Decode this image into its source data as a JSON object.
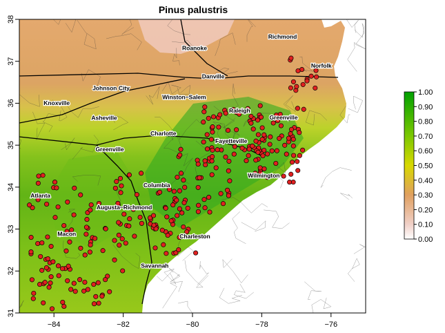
{
  "title": "Pinus palustris",
  "map": {
    "lon_range": [
      -85,
      -75
    ],
    "lat_range": [
      31,
      38
    ],
    "x_ticks": [
      {
        "value": -84,
        "label": "−84"
      },
      {
        "value": -82,
        "label": "−82"
      },
      {
        "value": -80,
        "label": "−80"
      },
      {
        "value": -78,
        "label": "−78"
      },
      {
        "value": -76,
        "label": "−76"
      }
    ],
    "y_ticks": [
      {
        "value": 31,
        "label": "31"
      },
      {
        "value": 32,
        "label": "32"
      },
      {
        "value": 33,
        "label": "33"
      },
      {
        "value": 34,
        "label": "34"
      },
      {
        "value": 35,
        "label": "35"
      },
      {
        "value": 36,
        "label": "36"
      },
      {
        "value": 37,
        "label": "37"
      },
      {
        "value": 38,
        "label": "38"
      }
    ],
    "cities": [
      {
        "name": "Richmond",
        "lon": -77.4,
        "lat": 37.54
      },
      {
        "name": "Roanoke",
        "lon": -79.94,
        "lat": 37.27
      },
      {
        "name": "Norfolk",
        "lon": -76.28,
        "lat": 36.85
      },
      {
        "name": "Danville",
        "lon": -79.4,
        "lat": 36.59
      },
      {
        "name": "Johnson City",
        "lon": -82.35,
        "lat": 36.31
      },
      {
        "name": "Winston−Salem",
        "lon": -80.24,
        "lat": 36.1
      },
      {
        "name": "Knoxville",
        "lon": -83.92,
        "lat": 35.96
      },
      {
        "name": "Raleigh",
        "lon": -78.64,
        "lat": 35.78
      },
      {
        "name": "Greenville",
        "lon": -77.37,
        "lat": 35.61
      },
      {
        "name": "Asheville",
        "lon": -82.55,
        "lat": 35.6
      },
      {
        "name": "Charlotte",
        "lon": -80.84,
        "lat": 35.23
      },
      {
        "name": "Fayetteville",
        "lon": -78.88,
        "lat": 35.05
      },
      {
        "name": "Greenville",
        "lon": -82.39,
        "lat": 34.85
      },
      {
        "name": "Wilmington",
        "lon": -77.94,
        "lat": 34.23
      },
      {
        "name": "Columbia",
        "lon": -81.03,
        "lat": 34.0
      },
      {
        "name": "Atlanta",
        "lon": -84.39,
        "lat": 33.75
      },
      {
        "name": "Augusta−Richmond",
        "lon": -81.97,
        "lat": 33.47
      },
      {
        "name": "Macon",
        "lon": -83.63,
        "lat": 32.84
      },
      {
        "name": "Charleston",
        "lon": -79.93,
        "lat": 32.78
      },
      {
        "name": "Savannah",
        "lon": -81.09,
        "lat": 32.08
      }
    ],
    "colors": {
      "high": "#1aa51a",
      "mid": "#c8d800",
      "low_mid": "#d9a66a",
      "low": "#f4dcd4",
      "occurrence_dot": "#e02020",
      "dot_border": "#000000"
    }
  },
  "legend": {
    "labels": [
      "1.00",
      "0.90",
      "0.80",
      "0.70",
      "0.60",
      "0.50",
      "0.40",
      "0.30",
      "0.20",
      "0.10",
      "0.00"
    ]
  }
}
